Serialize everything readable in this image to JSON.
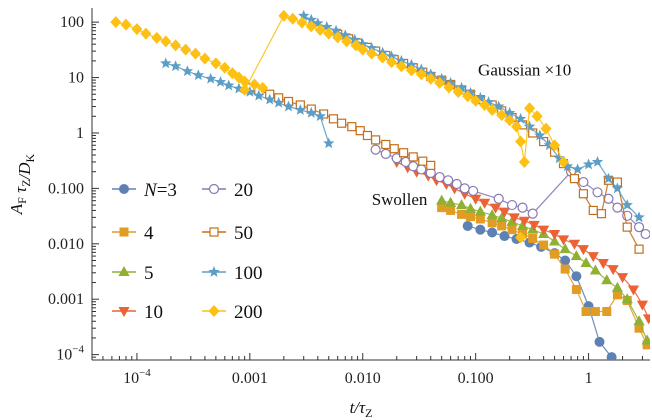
{
  "chart_data": {
    "type": "line",
    "title": "",
    "xlabel": "t/τ_Z",
    "ylabel": "A_F τ_Z/D_K",
    "x_scale": "log",
    "y_scale": "log",
    "xlim": [
      4e-05,
      3.5
    ],
    "ylim": [
      8e-05,
      180
    ],
    "x_ticks": [
      {
        "value": 0.0001,
        "label": "10",
        "sup": "−4"
      },
      {
        "value": 0.001,
        "label": "0.001"
      },
      {
        "value": 0.01,
        "label": "0.010"
      },
      {
        "value": 0.1,
        "label": "0.100"
      },
      {
        "value": 1,
        "label": "1"
      }
    ],
    "y_ticks": [
      {
        "value": 0.0001,
        "label": "10",
        "sup": "−4"
      },
      {
        "value": 0.001,
        "label": "0.001"
      },
      {
        "value": 0.01,
        "label": "0.010"
      },
      {
        "value": 0.1,
        "label": "0.100"
      },
      {
        "value": 1,
        "label": "1"
      },
      {
        "value": 10,
        "label": "10"
      },
      {
        "value": 100,
        "label": "100"
      }
    ],
    "annotations": [
      {
        "text": "Swollen",
        "x": 0.012,
        "y": 0.065
      },
      {
        "text": "Gaussian ×10",
        "x": 0.105,
        "y": 14
      }
    ],
    "legend": {
      "placement": "bottom-left",
      "columns": 2,
      "first_prefix": "N",
      "first_eq": "=",
      "entries": [
        "3",
        "4",
        "5",
        "10",
        "20",
        "50",
        "100",
        "200"
      ]
    },
    "series": [
      {
        "name": "3",
        "color": "#5E81B5",
        "marker": "circle",
        "points": [
          [
            0.085,
            0.021
          ],
          [
            0.11,
            0.018
          ],
          [
            0.14,
            0.016
          ],
          [
            0.18,
            0.0138
          ],
          [
            0.23,
            0.0122
          ],
          [
            0.3,
            0.0105
          ],
          [
            0.38,
            0.0088
          ],
          [
            0.5,
            0.0068
          ],
          [
            0.62,
            0.005
          ],
          [
            0.78,
            0.0026
          ],
          [
            1.0,
            0.00075
          ],
          [
            1.25,
            0.00017
          ],
          [
            1.6,
            9e-05
          ]
        ]
      },
      {
        "name": "4",
        "color": "#E19C24",
        "marker": "square",
        "points": [
          [
            0.05,
            0.045
          ],
          [
            0.06,
            0.04
          ],
          [
            0.075,
            0.034
          ],
          [
            0.09,
            0.031
          ],
          [
            0.11,
            0.028
          ],
          [
            0.14,
            0.024
          ],
          [
            0.17,
            0.021
          ],
          [
            0.21,
            0.018
          ],
          [
            0.26,
            0.015
          ],
          [
            0.32,
            0.0125
          ],
          [
            0.4,
            0.0095
          ],
          [
            0.5,
            0.0065
          ],
          [
            0.62,
            0.0035
          ],
          [
            0.78,
            0.0015
          ],
          [
            0.95,
            0.0006
          ],
          [
            1.15,
            0.0006
          ],
          [
            1.45,
            0.0006
          ],
          [
            1.8,
            0.0012
          ],
          [
            2.2,
            0.00095
          ],
          [
            2.8,
            0.0003
          ],
          [
            3.3,
            0.00015
          ]
        ]
      },
      {
        "name": "5",
        "color": "#8FB032",
        "marker": "triangle",
        "points": [
          [
            0.05,
            0.06
          ],
          [
            0.06,
            0.055
          ],
          [
            0.075,
            0.05
          ],
          [
            0.09,
            0.043
          ],
          [
            0.11,
            0.038
          ],
          [
            0.14,
            0.033
          ],
          [
            0.17,
            0.029
          ],
          [
            0.21,
            0.025
          ],
          [
            0.26,
            0.021
          ],
          [
            0.32,
            0.018
          ],
          [
            0.4,
            0.015
          ],
          [
            0.5,
            0.011
          ],
          [
            0.62,
            0.008
          ],
          [
            0.78,
            0.006
          ],
          [
            0.95,
            0.0045
          ],
          [
            1.15,
            0.0033
          ],
          [
            1.45,
            0.0022
          ],
          [
            1.8,
            0.0016
          ],
          [
            2.2,
            0.001
          ],
          [
            2.8,
            0.0004
          ],
          [
            3.3,
            0.00018
          ]
        ]
      },
      {
        "name": "10",
        "color": "#EB6235",
        "marker": "triangle-down",
        "points": [
          [
            0.02,
            0.3
          ],
          [
            0.025,
            0.24
          ],
          [
            0.03,
            0.2
          ],
          [
            0.038,
            0.17
          ],
          [
            0.045,
            0.14
          ],
          [
            0.055,
            0.12
          ],
          [
            0.065,
            0.1
          ],
          [
            0.08,
            0.08
          ],
          [
            0.1,
            0.065
          ],
          [
            0.12,
            0.055
          ],
          [
            0.15,
            0.045
          ],
          [
            0.18,
            0.038
          ],
          [
            0.22,
            0.03
          ],
          [
            0.27,
            0.026
          ],
          [
            0.33,
            0.022
          ],
          [
            0.4,
            0.018
          ],
          [
            0.5,
            0.015
          ],
          [
            0.6,
            0.012
          ],
          [
            0.75,
            0.01
          ],
          [
            0.9,
            0.008
          ],
          [
            1.1,
            0.006
          ],
          [
            1.35,
            0.0045
          ],
          [
            1.65,
            0.0035
          ],
          [
            2.0,
            0.0025
          ],
          [
            2.5,
            0.0015
          ],
          [
            3.0,
            0.0008
          ],
          [
            3.4,
            0.00045
          ]
        ]
      },
      {
        "name": "20",
        "color": "#8778B3",
        "marker": "circle-open",
        "points": [
          [
            0.013,
            0.5
          ],
          [
            0.016,
            0.42
          ],
          [
            0.02,
            0.35
          ],
          [
            0.024,
            0.3
          ],
          [
            0.028,
            0.25
          ],
          [
            0.033,
            0.22
          ],
          [
            0.04,
            0.19
          ],
          [
            0.048,
            0.16
          ],
          [
            0.057,
            0.14
          ],
          [
            0.068,
            0.12
          ],
          [
            0.08,
            0.1
          ],
          [
            0.095,
            0.09
          ],
          [
            0.16,
            0.065
          ],
          [
            0.21,
            0.05
          ],
          [
            0.26,
            0.045
          ],
          [
            0.32,
            0.035
          ],
          [
            0.7,
            0.2
          ],
          [
            0.9,
            0.13
          ],
          [
            1.2,
            0.085
          ],
          [
            1.5,
            0.065
          ],
          [
            1.8,
            0.045
          ],
          [
            2.2,
            0.032
          ],
          [
            2.8,
            0.02
          ],
          [
            3.2,
            0.015
          ]
        ]
      },
      {
        "name": "50",
        "color": "#C56E1A",
        "marker": "square-open",
        "points": [
          [
            0.001,
            6.5
          ],
          [
            0.0012,
            5.8
          ],
          [
            0.0015,
            5.0
          ],
          [
            0.0018,
            4.3
          ],
          [
            0.0022,
            3.7
          ],
          [
            0.0028,
            3.2
          ],
          [
            0.0035,
            2.7
          ],
          [
            0.0045,
            2.2
          ],
          [
            0.0055,
            1.8
          ],
          [
            0.0065,
            1.5
          ],
          [
            0.008,
            1.3
          ],
          [
            0.0095,
            1.1
          ],
          [
            0.011,
            0.9
          ],
          [
            0.013,
            0.75
          ],
          [
            0.016,
            0.62
          ],
          [
            0.019,
            0.52
          ],
          [
            0.023,
            0.44
          ],
          [
            0.028,
            0.37
          ],
          [
            0.034,
            0.31
          ],
          [
            0.04,
            0.26
          ],
          [
            0.006,
            60
          ],
          [
            0.0075,
            50
          ],
          [
            0.009,
            42
          ],
          [
            0.011,
            35
          ],
          [
            0.013,
            30
          ],
          [
            0.016,
            25
          ],
          [
            0.019,
            21
          ],
          [
            0.023,
            18
          ],
          [
            0.028,
            15
          ],
          [
            0.034,
            12.5
          ],
          [
            0.04,
            10.5
          ],
          [
            0.05,
            9
          ],
          [
            0.06,
            7.5
          ],
          [
            0.075,
            6
          ],
          [
            0.09,
            5
          ],
          [
            0.11,
            4
          ],
          [
            0.14,
            3.2
          ],
          [
            0.17,
            2.5
          ],
          [
            0.21,
            1.9
          ],
          [
            0.26,
            1.4
          ],
          [
            0.32,
            1.0
          ],
          [
            0.4,
            0.7
          ],
          [
            0.5,
            0.45
          ],
          [
            0.6,
            0.28
          ],
          [
            0.75,
            0.15
          ],
          [
            0.9,
            0.08
          ],
          [
            1.1,
            0.04
          ],
          [
            1.3,
            0.035
          ],
          [
            1.5,
            0.14
          ],
          [
            1.8,
            0.13
          ],
          [
            2.2,
            0.02
          ],
          [
            2.8,
            0.008
          ]
        ]
      },
      {
        "name": "100",
        "color": "#5D9EC7",
        "marker": "star",
        "points": [
          [
            0.00018,
            18
          ],
          [
            0.00022,
            16
          ],
          [
            0.00028,
            13
          ],
          [
            0.00035,
            11
          ],
          [
            0.00045,
            9.5
          ],
          [
            0.00055,
            8.3
          ],
          [
            0.00065,
            7.2
          ],
          [
            0.0008,
            6.3
          ],
          [
            0.001,
            5.5
          ],
          [
            0.0012,
            4.7
          ],
          [
            0.0015,
            4.0
          ],
          [
            0.0018,
            3.5
          ],
          [
            0.0022,
            3.0
          ],
          [
            0.0028,
            2.6
          ],
          [
            0.0035,
            2.3
          ],
          [
            0.0042,
            2.0
          ],
          [
            0.005,
            0.65
          ],
          [
            0.003,
            130
          ],
          [
            0.0035,
            110
          ],
          [
            0.004,
            95
          ],
          [
            0.0048,
            82
          ],
          [
            0.0058,
            70
          ],
          [
            0.007,
            58
          ],
          [
            0.0085,
            48
          ],
          [
            0.01,
            40
          ],
          [
            0.012,
            34
          ],
          [
            0.015,
            28
          ],
          [
            0.018,
            24
          ],
          [
            0.022,
            20
          ],
          [
            0.027,
            17
          ],
          [
            0.033,
            14
          ],
          [
            0.04,
            11.5
          ],
          [
            0.05,
            9.5
          ],
          [
            0.06,
            8
          ],
          [
            0.075,
            6.5
          ],
          [
            0.09,
            5.3
          ],
          [
            0.11,
            4.3
          ],
          [
            0.13,
            3.6
          ],
          [
            0.16,
            3.0
          ],
          [
            0.2,
            2.3
          ],
          [
            0.25,
            1.8
          ],
          [
            0.3,
            1.3
          ],
          [
            0.37,
            0.9
          ],
          [
            0.45,
            0.6
          ],
          [
            0.55,
            0.35
          ],
          [
            0.65,
            0.25
          ],
          [
            0.8,
            0.22
          ],
          [
            1.0,
            0.27
          ],
          [
            1.2,
            0.3
          ],
          [
            1.5,
            0.15
          ],
          [
            1.8,
            0.1
          ],
          [
            2.2,
            0.05
          ],
          [
            2.8,
            0.03
          ]
        ]
      },
      {
        "name": "200",
        "color": "#FDC013",
        "marker": "diamond",
        "points": [
          [
            6.5e-05,
            100
          ],
          [
            8e-05,
            90
          ],
          [
            0.0001,
            75
          ],
          [
            0.00012,
            62
          ],
          [
            0.00015,
            52
          ],
          [
            0.00018,
            45
          ],
          [
            0.00022,
            38
          ],
          [
            0.00027,
            32
          ],
          [
            0.00033,
            27
          ],
          [
            0.0004,
            22
          ],
          [
            0.0005,
            18
          ],
          [
            0.0006,
            15
          ],
          [
            0.0007,
            12
          ],
          [
            0.0008,
            10
          ],
          [
            0.0009,
            8.5
          ],
          [
            0.0011,
            7.5
          ],
          [
            0.0013,
            6.5
          ],
          [
            0.0009,
            6
          ],
          [
            0.002,
            130
          ],
          [
            0.0024,
            115
          ],
          [
            0.0029,
            98
          ],
          [
            0.0035,
            84
          ],
          [
            0.0042,
            72
          ],
          [
            0.005,
            62
          ],
          [
            0.006,
            53
          ],
          [
            0.0072,
            45
          ],
          [
            0.0087,
            38
          ],
          [
            0.01,
            32
          ],
          [
            0.012,
            27
          ],
          [
            0.015,
            23
          ],
          [
            0.018,
            19
          ],
          [
            0.022,
            16
          ],
          [
            0.027,
            13.5
          ],
          [
            0.033,
            11.5
          ],
          [
            0.04,
            9.5
          ],
          [
            0.048,
            8
          ],
          [
            0.058,
            6.6
          ],
          [
            0.07,
            5.5
          ],
          [
            0.085,
            4.6
          ],
          [
            0.1,
            3.8
          ],
          [
            0.12,
            3.2
          ],
          [
            0.14,
            2.6
          ],
          [
            0.17,
            2.1
          ],
          [
            0.2,
            1.7
          ],
          [
            0.23,
            1.3
          ],
          [
            0.25,
            0.7
          ],
          [
            0.27,
            0.3
          ],
          [
            0.3,
            2.8
          ],
          [
            0.35,
            2.0
          ],
          [
            0.42,
            1.2
          ],
          [
            0.5,
            0.6
          ],
          [
            0.6,
            0.3
          ],
          [
            0.25,
            0.013
          ]
        ]
      }
    ]
  }
}
